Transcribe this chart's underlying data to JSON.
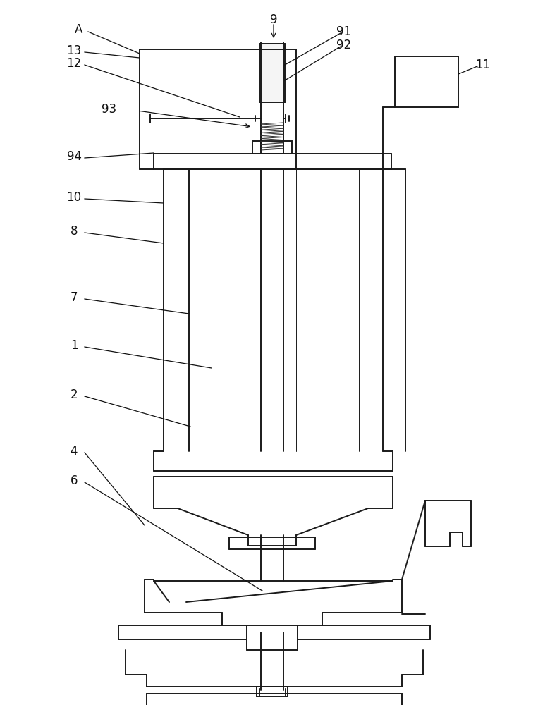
{
  "bg_color": "#ffffff",
  "line_color": "#1a1a1a",
  "lw": 1.4,
  "lw_thin": 0.7,
  "fig_width": 7.63,
  "fig_height": 10.0
}
